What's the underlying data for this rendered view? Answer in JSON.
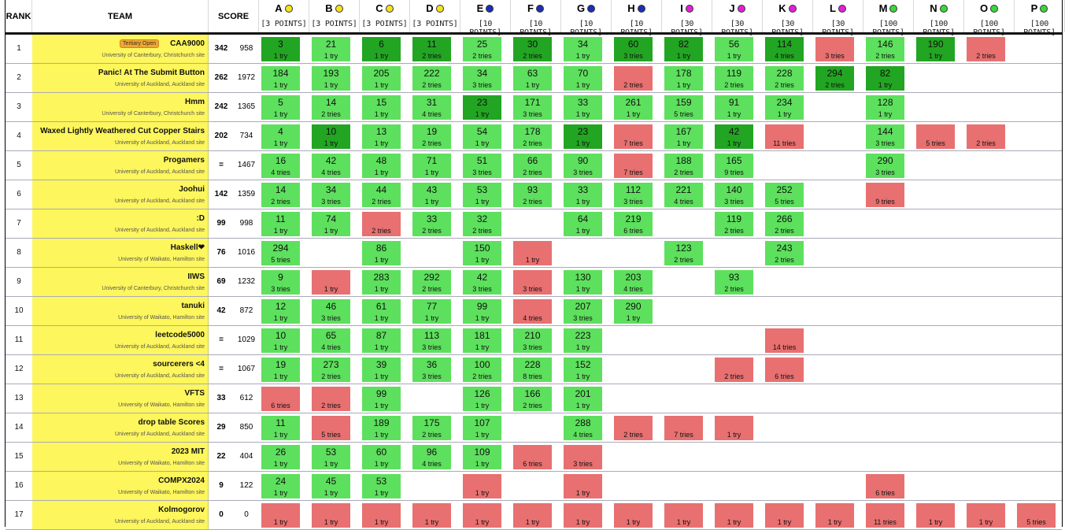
{
  "headers": {
    "rank": "RANK",
    "team": "TEAM",
    "score": "SCORE"
  },
  "problems": [
    {
      "letter": "A",
      "points": "[3 POINTS]",
      "color": "#f5e21c"
    },
    {
      "letter": "B",
      "points": "[3 POINTS]",
      "color": "#f5e21c"
    },
    {
      "letter": "C",
      "points": "[3 POINTS]",
      "color": "#f5e21c"
    },
    {
      "letter": "D",
      "points": "[3 POINTS]",
      "color": "#f5e21c"
    },
    {
      "letter": "E",
      "points": "[10 POINTS]",
      "color": "#1a2fb5"
    },
    {
      "letter": "F",
      "points": "[10 POINTS]",
      "color": "#1a2fb5"
    },
    {
      "letter": "G",
      "points": "[10 POINTS]",
      "color": "#1a2fb5"
    },
    {
      "letter": "H",
      "points": "[10 POINTS]",
      "color": "#1a2fb5"
    },
    {
      "letter": "I",
      "points": "[30 POINTS]",
      "color": "#e41ed8"
    },
    {
      "letter": "J",
      "points": "[30 POINTS]",
      "color": "#e41ed8"
    },
    {
      "letter": "K",
      "points": "[30 POINTS]",
      "color": "#e41ed8"
    },
    {
      "letter": "L",
      "points": "[30 POINTS]",
      "color": "#e41ed8"
    },
    {
      "letter": "M",
      "points": "[100 POINTS]",
      "color": "#3ad63a"
    },
    {
      "letter": "N",
      "points": "[100 POINTS]",
      "color": "#3ad63a"
    },
    {
      "letter": "O",
      "points": "[100 POINTS]",
      "color": "#3ad63a"
    },
    {
      "letter": "P",
      "points": "[100 POINTS]",
      "color": "#3ad63a"
    }
  ],
  "rows": [
    {
      "rank": "1",
      "name": "CAA9000",
      "badge": "Tertiary Open",
      "affiliation": "University of Canterbury, Christchurch site",
      "solved": "342",
      "penalty": "958",
      "cells": [
        [
          "first",
          "3",
          "1 try"
        ],
        [
          "ok",
          "21",
          "1 try"
        ],
        [
          "first",
          "6",
          "1 try"
        ],
        [
          "first",
          "11",
          "2 tries"
        ],
        [
          "ok",
          "25",
          "2 tries"
        ],
        [
          "first",
          "30",
          "2 tries"
        ],
        [
          "ok",
          "34",
          "1 try"
        ],
        [
          "first",
          "60",
          "3 tries"
        ],
        [
          "first",
          "82",
          "1 try"
        ],
        [
          "ok",
          "56",
          "1 try"
        ],
        [
          "first",
          "114",
          "4 tries"
        ],
        [
          "fail",
          "",
          "3 tries"
        ],
        [
          "ok",
          "146",
          "2 tries"
        ],
        [
          "first",
          "190",
          "1 try"
        ],
        [
          "fail",
          "",
          "2 tries"
        ],
        null
      ]
    },
    {
      "rank": "2",
      "name": "Panic! At The Submit Button",
      "affiliation": "University of Auckland, Auckland site",
      "solved": "262",
      "penalty": "1972",
      "cells": [
        [
          "ok",
          "184",
          "1 try"
        ],
        [
          "ok",
          "193",
          "1 try"
        ],
        [
          "ok",
          "205",
          "1 try"
        ],
        [
          "ok",
          "222",
          "2 tries"
        ],
        [
          "ok",
          "34",
          "3 tries"
        ],
        [
          "ok",
          "63",
          "1 try"
        ],
        [
          "ok",
          "70",
          "1 try"
        ],
        [
          "fail",
          "",
          "2 tries"
        ],
        [
          "ok",
          "178",
          "1 try"
        ],
        [
          "ok",
          "119",
          "2 tries"
        ],
        [
          "ok",
          "228",
          "2 tries"
        ],
        [
          "first",
          "294",
          "2 tries"
        ],
        [
          "first",
          "82",
          "1 try"
        ],
        null,
        null,
        null
      ]
    },
    {
      "rank": "3",
      "name": "Hmm",
      "affiliation": "University of Canterbury, Christchurch site",
      "solved": "242",
      "penalty": "1365",
      "cells": [
        [
          "ok",
          "5",
          "1 try"
        ],
        [
          "ok",
          "14",
          "2 tries"
        ],
        [
          "ok",
          "15",
          "1 try"
        ],
        [
          "ok",
          "31",
          "4 tries"
        ],
        [
          "first",
          "23",
          "1 try"
        ],
        [
          "ok",
          "171",
          "3 tries"
        ],
        [
          "ok",
          "33",
          "1 try"
        ],
        [
          "ok",
          "261",
          "1 try"
        ],
        [
          "ok",
          "159",
          "5 tries"
        ],
        [
          "ok",
          "91",
          "1 try"
        ],
        [
          "ok",
          "234",
          "1 try"
        ],
        null,
        [
          "ok",
          "128",
          "1 try"
        ],
        null,
        null,
        null
      ]
    },
    {
      "rank": "4",
      "name": "Waxed Lightly Weathered Cut Copper Stairs",
      "affiliation": "University of Auckland, Auckland site",
      "solved": "202",
      "penalty": "734",
      "cells": [
        [
          "ok",
          "4",
          "1 try"
        ],
        [
          "first",
          "10",
          "1 try"
        ],
        [
          "ok",
          "13",
          "1 try"
        ],
        [
          "ok",
          "19",
          "2 tries"
        ],
        [
          "ok",
          "54",
          "1 try"
        ],
        [
          "ok",
          "178",
          "2 tries"
        ],
        [
          "first",
          "23",
          "1 try"
        ],
        [
          "fail",
          "",
          "7 tries"
        ],
        [
          "ok",
          "167",
          "1 try"
        ],
        [
          "first",
          "42",
          "1 try"
        ],
        [
          "fail",
          "",
          "11 tries"
        ],
        null,
        [
          "ok",
          "144",
          "3 tries"
        ],
        [
          "fail",
          "",
          "5 tries"
        ],
        [
          "fail",
          "",
          "2 tries"
        ],
        null
      ]
    },
    {
      "rank": "5",
      "name": "Progamers",
      "affiliation": "University of Auckland, Auckland site",
      "solved": "=",
      "penalty": "1467",
      "cells": [
        [
          "ok",
          "16",
          "4 tries"
        ],
        [
          "ok",
          "42",
          "4 tries"
        ],
        [
          "ok",
          "48",
          "1 try"
        ],
        [
          "ok",
          "71",
          "1 try"
        ],
        [
          "ok",
          "51",
          "3 tries"
        ],
        [
          "ok",
          "66",
          "2 tries"
        ],
        [
          "ok",
          "90",
          "3 tries"
        ],
        [
          "fail",
          "",
          "7 tries"
        ],
        [
          "ok",
          "188",
          "2 tries"
        ],
        [
          "ok",
          "165",
          "9 tries"
        ],
        null,
        null,
        [
          "ok",
          "290",
          "3 tries"
        ],
        null,
        null,
        null
      ]
    },
    {
      "rank": "6",
      "name": "Joohui",
      "affiliation": "University of Auckland, Auckland site",
      "solved": "142",
      "penalty": "1359",
      "cells": [
        [
          "ok",
          "14",
          "2 tries"
        ],
        [
          "ok",
          "34",
          "3 tries"
        ],
        [
          "ok",
          "44",
          "2 tries"
        ],
        [
          "ok",
          "43",
          "1 try"
        ],
        [
          "ok",
          "53",
          "1 try"
        ],
        [
          "ok",
          "93",
          "2 tries"
        ],
        [
          "ok",
          "33",
          "1 try"
        ],
        [
          "ok",
          "112",
          "3 tries"
        ],
        [
          "ok",
          "221",
          "4 tries"
        ],
        [
          "ok",
          "140",
          "3 tries"
        ],
        [
          "ok",
          "252",
          "5 tries"
        ],
        null,
        [
          "fail",
          "",
          "9 tries"
        ],
        null,
        null,
        null
      ]
    },
    {
      "rank": "7",
      "name": ":D",
      "affiliation": "University of Auckland, Auckland site",
      "solved": "99",
      "penalty": "998",
      "cells": [
        [
          "ok",
          "11",
          "1 try"
        ],
        [
          "ok",
          "74",
          "1 try"
        ],
        [
          "fail",
          "",
          "2 tries"
        ],
        [
          "ok",
          "33",
          "2 tries"
        ],
        [
          "ok",
          "32",
          "2 tries"
        ],
        null,
        [
          "ok",
          "64",
          "1 try"
        ],
        [
          "ok",
          "219",
          "6 tries"
        ],
        null,
        [
          "ok",
          "119",
          "2 tries"
        ],
        [
          "ok",
          "266",
          "2 tries"
        ],
        null,
        null,
        null,
        null,
        null
      ]
    },
    {
      "rank": "8",
      "name": "Haskell❤",
      "affiliation": "University of Waikato, Hamilton site",
      "solved": "76",
      "penalty": "1016",
      "cells": [
        [
          "ok",
          "294",
          "5 tries"
        ],
        null,
        [
          "ok",
          "86",
          "1 try"
        ],
        null,
        [
          "ok",
          "150",
          "1 try"
        ],
        [
          "fail",
          "",
          "1 try"
        ],
        null,
        null,
        [
          "ok",
          "123",
          "2 tries"
        ],
        null,
        [
          "ok",
          "243",
          "2 tries"
        ],
        null,
        null,
        null,
        null,
        null
      ]
    },
    {
      "rank": "9",
      "name": "IIWS",
      "affiliation": "University of Canterbury, Christchurch site",
      "solved": "69",
      "penalty": "1232",
      "cells": [
        [
          "ok",
          "9",
          "3 tries"
        ],
        [
          "fail",
          "",
          "1 try"
        ],
        [
          "ok",
          "283",
          "1 try"
        ],
        [
          "ok",
          "292",
          "2 tries"
        ],
        [
          "ok",
          "42",
          "3 tries"
        ],
        [
          "fail",
          "",
          "3 tries"
        ],
        [
          "ok",
          "130",
          "1 try"
        ],
        [
          "ok",
          "203",
          "4 tries"
        ],
        null,
        [
          "ok",
          "93",
          "2 tries"
        ],
        null,
        null,
        null,
        null,
        null,
        null
      ]
    },
    {
      "rank": "10",
      "name": "tanuki",
      "affiliation": "University of Waikato, Hamilton site",
      "solved": "42",
      "penalty": "872",
      "cells": [
        [
          "ok",
          "12",
          "1 try"
        ],
        [
          "ok",
          "46",
          "3 tries"
        ],
        [
          "ok",
          "61",
          "1 try"
        ],
        [
          "ok",
          "77",
          "1 try"
        ],
        [
          "ok",
          "99",
          "1 try"
        ],
        [
          "fail",
          "",
          "4 tries"
        ],
        [
          "ok",
          "207",
          "3 tries"
        ],
        [
          "ok",
          "290",
          "1 try"
        ],
        null,
        null,
        null,
        null,
        null,
        null,
        null,
        null
      ]
    },
    {
      "rank": "11",
      "name": "leetcode5000",
      "affiliation": "University of Auckland, Auckland site",
      "solved": "=",
      "penalty": "1029",
      "cells": [
        [
          "ok",
          "10",
          "1 try"
        ],
        [
          "ok",
          "65",
          "4 tries"
        ],
        [
          "ok",
          "87",
          "1 try"
        ],
        [
          "ok",
          "113",
          "3 tries"
        ],
        [
          "ok",
          "181",
          "1 try"
        ],
        [
          "ok",
          "210",
          "3 tries"
        ],
        [
          "ok",
          "223",
          "1 try"
        ],
        null,
        null,
        null,
        [
          "fail",
          "",
          "14 tries"
        ],
        null,
        null,
        null,
        null,
        null
      ]
    },
    {
      "rank": "12",
      "name": "sourcerers <4",
      "affiliation": "University of Auckland, Auckland site",
      "solved": "=",
      "penalty": "1067",
      "cells": [
        [
          "ok",
          "19",
          "1 try"
        ],
        [
          "ok",
          "273",
          "2 tries"
        ],
        [
          "ok",
          "39",
          "1 try"
        ],
        [
          "ok",
          "36",
          "3 tries"
        ],
        [
          "ok",
          "100",
          "2 tries"
        ],
        [
          "ok",
          "228",
          "8 tries"
        ],
        [
          "ok",
          "152",
          "1 try"
        ],
        null,
        null,
        [
          "fail",
          "",
          "2 tries"
        ],
        [
          "fail",
          "",
          "6 tries"
        ],
        null,
        null,
        null,
        null,
        null
      ]
    },
    {
      "rank": "13",
      "name": "VFTS",
      "affiliation": "University of Waikato, Hamilton site",
      "solved": "33",
      "penalty": "612",
      "cells": [
        [
          "fail",
          "",
          "6 tries"
        ],
        [
          "fail",
          "",
          "2 tries"
        ],
        [
          "ok",
          "99",
          "1 try"
        ],
        null,
        [
          "ok",
          "126",
          "1 try"
        ],
        [
          "ok",
          "166",
          "2 tries"
        ],
        [
          "ok",
          "201",
          "1 try"
        ],
        null,
        null,
        null,
        null,
        null,
        null,
        null,
        null,
        null
      ]
    },
    {
      "rank": "14",
      "name": "drop table Scores",
      "affiliation": "University of Auckland, Auckland site",
      "solved": "29",
      "penalty": "850",
      "cells": [
        [
          "ok",
          "11",
          "1 try"
        ],
        [
          "fail",
          "",
          "5 tries"
        ],
        [
          "ok",
          "189",
          "1 try"
        ],
        [
          "ok",
          "175",
          "2 tries"
        ],
        [
          "ok",
          "107",
          "1 try"
        ],
        null,
        [
          "ok",
          "288",
          "4 tries"
        ],
        [
          "fail",
          "",
          "2 tries"
        ],
        [
          "fail",
          "",
          "7 tries"
        ],
        [
          "fail",
          "",
          "1 try"
        ],
        null,
        null,
        null,
        null,
        null,
        null
      ]
    },
    {
      "rank": "15",
      "name": "2023 MIT",
      "affiliation": "University of Waikato, Hamilton site",
      "solved": "22",
      "penalty": "404",
      "cells": [
        [
          "ok",
          "26",
          "1 try"
        ],
        [
          "ok",
          "53",
          "1 try"
        ],
        [
          "ok",
          "60",
          "1 try"
        ],
        [
          "ok",
          "96",
          "4 tries"
        ],
        [
          "ok",
          "109",
          "1 try"
        ],
        [
          "fail",
          "",
          "6 tries"
        ],
        [
          "fail",
          "",
          "3 tries"
        ],
        null,
        null,
        null,
        null,
        null,
        null,
        null,
        null,
        null
      ]
    },
    {
      "rank": "16",
      "name": "COMPX2024",
      "affiliation": "University of Waikato, Hamilton site",
      "solved": "9",
      "penalty": "122",
      "cells": [
        [
          "ok",
          "24",
          "1 try"
        ],
        [
          "ok",
          "45",
          "1 try"
        ],
        [
          "ok",
          "53",
          "1 try"
        ],
        null,
        [
          "fail",
          "",
          "1 try"
        ],
        null,
        [
          "fail",
          "",
          "1 try"
        ],
        null,
        null,
        null,
        null,
        null,
        [
          "fail",
          "",
          "6 tries"
        ],
        null,
        null,
        null
      ]
    },
    {
      "rank": "17",
      "name": "Kolmogorov",
      "affiliation": "University of Auckland, Auckland site",
      "solved": "0",
      "penalty": "0",
      "cells": [
        [
          "fail",
          "",
          "1 try"
        ],
        [
          "fail",
          "",
          "1 try"
        ],
        [
          "fail",
          "",
          "1 try"
        ],
        [
          "fail",
          "",
          "1 try"
        ],
        [
          "fail",
          "",
          "1 try"
        ],
        [
          "fail",
          "",
          "1 try"
        ],
        [
          "fail",
          "",
          "1 try"
        ],
        [
          "fail",
          "",
          "1 try"
        ],
        [
          "fail",
          "",
          "1 try"
        ],
        [
          "fail",
          "",
          "1 try"
        ],
        [
          "fail",
          "",
          "1 try"
        ],
        [
          "fail",
          "",
          "1 try"
        ],
        [
          "fail",
          "",
          "11 tries"
        ],
        [
          "fail",
          "",
          "1 try"
        ],
        [
          "fail",
          "",
          "1 try"
        ],
        [
          "fail",
          "",
          "5 tries"
        ]
      ]
    }
  ]
}
